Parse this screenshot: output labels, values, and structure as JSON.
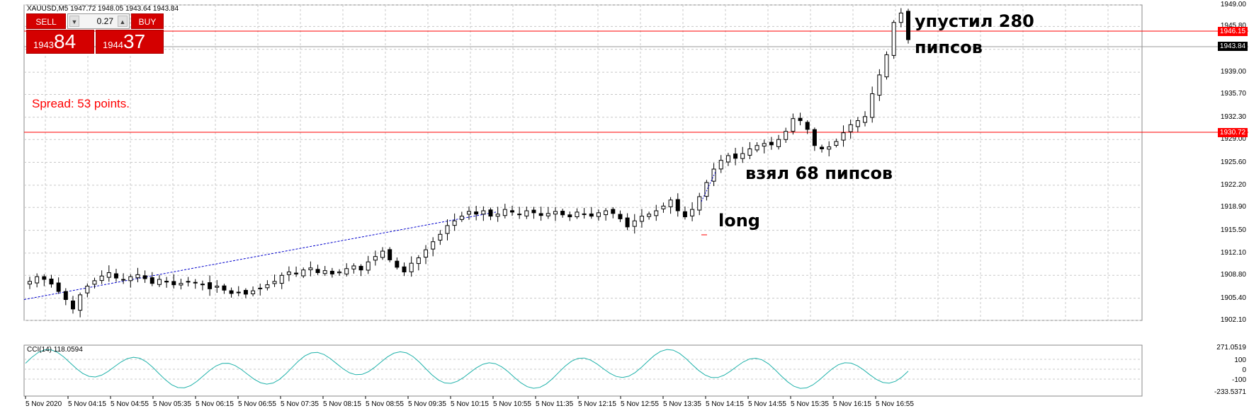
{
  "symbol_header": "XAUUSD,M5  1947.72 1948.05 1943.64 1943.84",
  "one_click": {
    "sell_label": "SELL",
    "buy_label": "BUY",
    "lot": "0.27",
    "sell_price_small": "1943",
    "sell_price_big": "84",
    "buy_price_small": "1944",
    "buy_price_big": "37"
  },
  "spread_text": "Spread: 53 points.",
  "annotations": {
    "long": "long",
    "took": "взял 68 пипсов",
    "missed_1": "упустил 280",
    "missed_2": "пипсов"
  },
  "price_axis": [
    "1949.00",
    "1945.80",
    "1942.40",
    "1939.00",
    "1935.70",
    "1932.30",
    "1929.00",
    "1925.60",
    "1922.20",
    "1918.90",
    "1915.50",
    "1912.10",
    "1908.80",
    "1905.40",
    "1902.10"
  ],
  "price_tags": {
    "upper_line": "1946.15",
    "current": "1943.84",
    "lower_line": "1930.72"
  },
  "time_axis": [
    "5 Nov 2020",
    "5 Nov 04:15",
    "5 Nov 04:55",
    "5 Nov 05:35",
    "5 Nov 06:15",
    "5 Nov 06:55",
    "5 Nov 07:35",
    "5 Nov 08:15",
    "5 Nov 08:55",
    "5 Nov 09:35",
    "5 Nov 10:15",
    "5 Nov 10:55",
    "5 Nov 11:35",
    "5 Nov 12:15",
    "5 Nov 12:55",
    "5 Nov 13:35",
    "5 Nov 14:15",
    "5 Nov 14:55",
    "5 Nov 15:35",
    "5 Nov 16:15",
    "5 Nov 16:55"
  ],
  "cci": {
    "title": "CCI(14) 118.0594",
    "axis": [
      "271.0519",
      "100",
      "0",
      "-100",
      "-233.5371"
    ]
  },
  "colors": {
    "sell_buy": "#d40000",
    "level_line": "#ff0000",
    "trend_line": "#0000cc",
    "cci_line": "#20b2aa"
  },
  "chart_data": {
    "type": "candlestick",
    "ylim": [
      1902.1,
      1949.0
    ],
    "closes": [
      1907.9,
      1908.6,
      1908.2,
      1907.5,
      1906.4,
      1905.2,
      1903.8,
      1905.9,
      1907.2,
      1908.0,
      1908.7,
      1909.2,
      1908.4,
      1908.1,
      1908.6,
      1908.9,
      1908.3,
      1907.6,
      1908.2,
      1907.8,
      1907.4,
      1907.6,
      1907.9,
      1907.7,
      1907.5,
      1906.8,
      1907.2,
      1906.6,
      1906.1,
      1906.3,
      1906.0,
      1906.5,
      1906.9,
      1907.4,
      1907.9,
      1908.8,
      1909.3,
      1909.0,
      1909.6,
      1909.9,
      1909.2,
      1909.5,
      1909.0,
      1909.3,
      1909.8,
      1910.2,
      1909.6,
      1910.8,
      1911.6,
      1912.4,
      1911.1,
      1910.0,
      1909.3,
      1910.6,
      1911.4,
      1912.6,
      1913.8,
      1914.9,
      1916.2,
      1916.9,
      1917.6,
      1918.3,
      1917.9,
      1918.4,
      1917.6,
      1917.9,
      1918.6,
      1918.2,
      1917.9,
      1918.4,
      1918.1,
      1917.7,
      1918.0,
      1918.3,
      1917.8,
      1917.5,
      1918.2,
      1917.9,
      1917.6,
      1918.1,
      1918.4,
      1918.0,
      1917.2,
      1916.0,
      1916.9,
      1917.6,
      1917.9,
      1918.4,
      1919.1,
      1920.0,
      1918.4,
      1917.5,
      1918.6,
      1920.5,
      1922.6,
      1924.6,
      1925.9,
      1926.6,
      1926.2,
      1926.9,
      1927.6,
      1928.1,
      1928.4,
      1928.2,
      1929.0,
      1930.2,
      1932.1,
      1931.8,
      1930.5,
      1928.1,
      1927.6,
      1927.9,
      1928.7,
      1930.0,
      1931.2,
      1931.8,
      1932.4,
      1935.8,
      1938.6,
      1941.6,
      1946.4,
      1947.8,
      1943.84
    ]
  }
}
